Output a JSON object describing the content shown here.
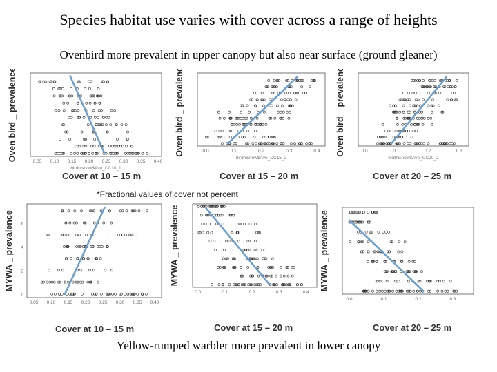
{
  "slide": {
    "title": "Species habitat use varies with cover across a range of heights",
    "subtitle": "Ovenbird more prevalent in upper canopy but also near surface (ground gleaner)",
    "note": "*Fractional values of cover not percent",
    "footer": "Yellow-rumped warbler more prevalent in lower canopy"
  },
  "colors": {
    "trend_line": "#6f9fcb",
    "points": "#333333",
    "background": "#ffffff"
  },
  "chart_data": [
    {
      "type": "scatter",
      "title": "Cover at 10 – 15 m",
      "xlabel": "birdhisnow$Ave_CC10_1",
      "ylabel": "Oven bird _ prevalence",
      "xlim": [
        0.03,
        0.41
      ],
      "ylim": [
        -0.2,
        5.6
      ],
      "xticks": [
        "0.05",
        "0.10",
        "0.15",
        "0.20",
        "0.25",
        "0.30",
        "0.35",
        "0.40"
      ],
      "levels": [
        0,
        0.5,
        1,
        1.5,
        2,
        2.5,
        3,
        3.5,
        4,
        4.5,
        5
      ],
      "x_range": [
        0.05,
        0.4
      ],
      "trend": {
        "x": [
          0.145,
          0.245
        ],
        "y": [
          5.4,
          0
        ]
      }
    },
    {
      "type": "scatter",
      "title": "Cover at 15 – 20 m",
      "xlabel": "birdhisnow$Ave_CC15_2",
      "ylabel": "Oven bird _ prevalence",
      "xlim": [
        -0.03,
        0.43
      ],
      "ylim": [
        -0.2,
        5.6
      ],
      "xticks": [
        "0.0",
        "0.1",
        "0.2",
        "0.3",
        "0.4"
      ],
      "levels": [
        0,
        0.5,
        1,
        1.5,
        2,
        2.5,
        3,
        3.5,
        4,
        4.5,
        5
      ],
      "x_range": [
        0.0,
        0.41
      ],
      "trend": {
        "x": [
          0.08,
          0.33
        ],
        "y": [
          0,
          5.3
        ]
      }
    },
    {
      "type": "scatter",
      "title": "Cover at  20 – 25 m",
      "xlabel": "birdhisnow$Ave_CC20_2",
      "ylabel": "Oven bird _ prevalence",
      "xlim": [
        -0.02,
        0.33
      ],
      "ylim": [
        -0.2,
        5.6
      ],
      "xticks": [
        "0.0",
        "0.1",
        "0.2",
        "0.3"
      ],
      "levels": [
        0,
        0.5,
        1,
        1.5,
        2,
        2.5,
        3,
        3.5,
        4,
        4.5,
        5
      ],
      "x_range": [
        0.0,
        0.3
      ],
      "trend": {
        "x": [
          0.085,
          0.26
        ],
        "y": [
          0,
          5.3
        ]
      }
    },
    {
      "type": "scatter",
      "title": "Cover at 10 – 15 m",
      "xlabel": "",
      "ylabel": "MYWA _ prevalence",
      "xlim": [
        0.03,
        0.42
      ],
      "ylim": [
        -0.3,
        7.6
      ],
      "xticks": [
        "0.05",
        "0.10",
        "0.15",
        "0.20",
        "0.25",
        "0.30",
        "0.35",
        "0.40"
      ],
      "yticks": [
        "0",
        "2",
        "4",
        "6"
      ],
      "levels": [
        0,
        1,
        2,
        3,
        4,
        5,
        6,
        7
      ],
      "x_range": [
        0.05,
        0.4
      ],
      "trend": {
        "x": [
          0.14,
          0.255
        ],
        "y": [
          0,
          7.3
        ]
      }
    },
    {
      "type": "scatter",
      "title": "Cover at 15 – 20 m",
      "xlabel": "",
      "ylabel": "MYWA _ prevalence",
      "xlim": [
        -0.02,
        0.44
      ],
      "ylim": [
        -0.3,
        9.3
      ],
      "xticks": [
        "0.0",
        "0.1",
        "0.2",
        "0.3",
        "0.4"
      ],
      "levels": [
        0,
        1,
        2,
        3,
        4,
        5,
        6,
        7,
        8,
        9
      ],
      "x_range": [
        0.0,
        0.41
      ],
      "trend": {
        "x": [
          0.03,
          0.265
        ],
        "y": [
          8.8,
          0
        ]
      }
    },
    {
      "type": "scatter",
      "title": "Cover at  20 – 25 m",
      "xlabel": "",
      "ylabel": "MYWA _ prevalence",
      "xlim": [
        -0.02,
        0.36
      ],
      "ylim": [
        -0.3,
        8.5
      ],
      "xticks": [
        "0.0",
        "0.1",
        "0.2",
        "0.3"
      ],
      "levels": [
        0,
        1,
        2,
        3,
        4,
        5,
        6,
        7,
        8
      ],
      "x_range": [
        0.0,
        0.33
      ],
      "trend": {
        "x": [
          0.0,
          0.215
        ],
        "y": [
          7.2,
          0
        ]
      }
    }
  ]
}
